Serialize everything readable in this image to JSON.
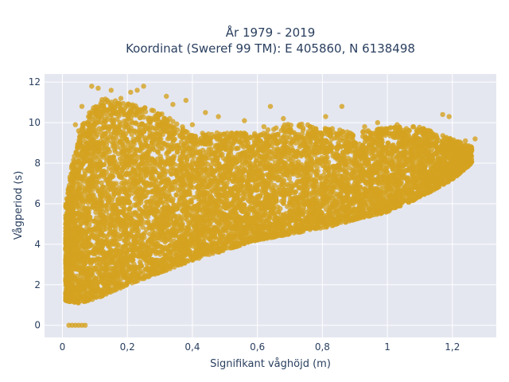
{
  "chart_data": {
    "type": "scatter",
    "title_lines": [
      "År 1979 - 2019",
      "Koordinat (Sweref 99 TM): E 405860, N 6138498"
    ],
    "xlabel": "Signifikant våghöjd (m)",
    "ylabel": "Vågperiod (s)",
    "xlim": [
      -0.055,
      1.335
    ],
    "ylim": [
      -0.6,
      12.4
    ],
    "x_ticks": [
      0,
      0.2,
      0.4,
      0.6,
      0.8,
      1.0,
      1.2
    ],
    "x_tick_labels": [
      "0",
      "0,2",
      "0,4",
      "0,6",
      "0,8",
      "1",
      "1,2"
    ],
    "y_ticks": [
      0,
      2,
      4,
      6,
      8,
      10,
      12
    ],
    "y_tick_labels": [
      "0",
      "2",
      "4",
      "6",
      "8",
      "10",
      "12"
    ],
    "grid": true,
    "marker_color": "#d4a220",
    "plot_background": "#e5e7f0",
    "envelope": {
      "lower": [
        [
          0.01,
          1.2
        ],
        [
          0.05,
          1.1
        ],
        [
          0.1,
          1.3
        ],
        [
          0.15,
          1.6
        ],
        [
          0.2,
          2.0
        ],
        [
          0.3,
          2.6
        ],
        [
          0.4,
          3.2
        ],
        [
          0.5,
          3.7
        ],
        [
          0.6,
          4.2
        ],
        [
          0.7,
          4.5
        ],
        [
          0.8,
          4.8
        ],
        [
          0.9,
          5.2
        ],
        [
          1.0,
          5.6
        ],
        [
          1.1,
          6.3
        ],
        [
          1.2,
          7.2
        ],
        [
          1.26,
          8.0
        ]
      ],
      "upper": [
        [
          0.01,
          6.0
        ],
        [
          0.03,
          8.0
        ],
        [
          0.06,
          10.0
        ],
        [
          0.08,
          10.5
        ],
        [
          0.12,
          11.2
        ],
        [
          0.2,
          11.0
        ],
        [
          0.3,
          10.5
        ],
        [
          0.4,
          9.5
        ],
        [
          0.5,
          9.5
        ],
        [
          0.6,
          9.5
        ],
        [
          0.7,
          10.0
        ],
        [
          0.8,
          9.8
        ],
        [
          0.9,
          9.5
        ],
        [
          1.0,
          9.8
        ],
        [
          1.1,
          9.8
        ],
        [
          1.2,
          9.2
        ],
        [
          1.26,
          8.8
        ]
      ]
    },
    "outlier_points": [
      [
        0.09,
        11.8
      ],
      [
        0.11,
        11.7
      ],
      [
        0.15,
        11.6
      ],
      [
        0.23,
        11.6
      ],
      [
        0.25,
        11.8
      ],
      [
        0.21,
        11.5
      ],
      [
        0.18,
        11.2
      ],
      [
        0.32,
        11.3
      ],
      [
        0.34,
        10.9
      ],
      [
        0.06,
        10.8
      ],
      [
        0.08,
        10.3
      ],
      [
        0.04,
        9.9
      ],
      [
        0.05,
        9.6
      ],
      [
        0.38,
        11.1
      ],
      [
        0.64,
        10.8
      ],
      [
        0.86,
        10.8
      ],
      [
        0.81,
        10.3
      ],
      [
        0.97,
        10.0
      ],
      [
        1.03,
        9.9
      ],
      [
        1.08,
        9.8
      ],
      [
        1.17,
        10.4
      ],
      [
        1.19,
        10.3
      ],
      [
        0.56,
        10.1
      ],
      [
        0.48,
        10.3
      ],
      [
        0.68,
        10.2
      ],
      [
        0.78,
        9.7
      ],
      [
        1.12,
        9.6
      ],
      [
        1.05,
        9.3
      ],
      [
        1.24,
        9.1
      ],
      [
        1.27,
        9.2
      ],
      [
        0.73,
        9.9
      ],
      [
        0.62,
        9.8
      ],
      [
        0.93,
        9.8
      ],
      [
        0.44,
        10.5
      ],
      [
        0.4,
        9.9
      ]
    ],
    "zero_points": [
      [
        0.02,
        0
      ],
      [
        0.03,
        0
      ],
      [
        0.04,
        0
      ],
      [
        0.05,
        0
      ],
      [
        0.06,
        0
      ],
      [
        0.07,
        0
      ]
    ]
  }
}
